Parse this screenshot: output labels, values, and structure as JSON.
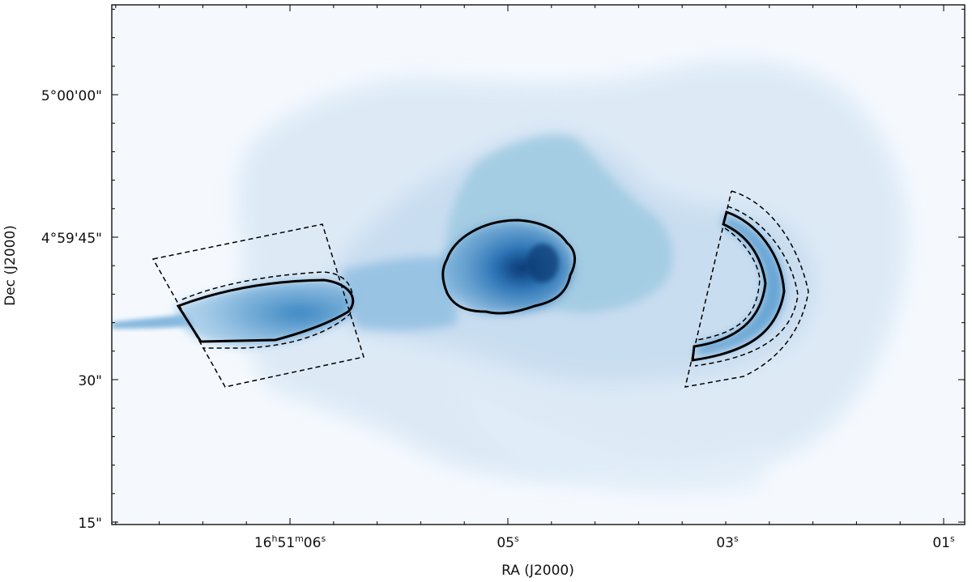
{
  "figure": {
    "x_axis_title": "RA (J2000)",
    "y_axis_title": "Dec (J2000)",
    "x_ticks": [
      {
        "h": "16",
        "hs": "h",
        "m": "51",
        "ms": "m",
        "s": "06",
        "ss": "s"
      },
      {
        "s": "05",
        "ss": "s"
      },
      {
        "s": "03",
        "ss": "s"
      },
      {
        "s": "01",
        "ss": "s"
      }
    ],
    "y_ticks": [
      "5°00'00\"",
      "4°59'45\"",
      "30\"",
      "15\""
    ],
    "colormap": {
      "background": "#f5f9fe",
      "light": "#dbe9f6",
      "mid": "#9ecae1",
      "dark": "#2171b5",
      "darkest": "#084a8c"
    },
    "regions": {
      "solid_contour_color": "#000000",
      "dashed_contour_color": "#000000"
    }
  }
}
